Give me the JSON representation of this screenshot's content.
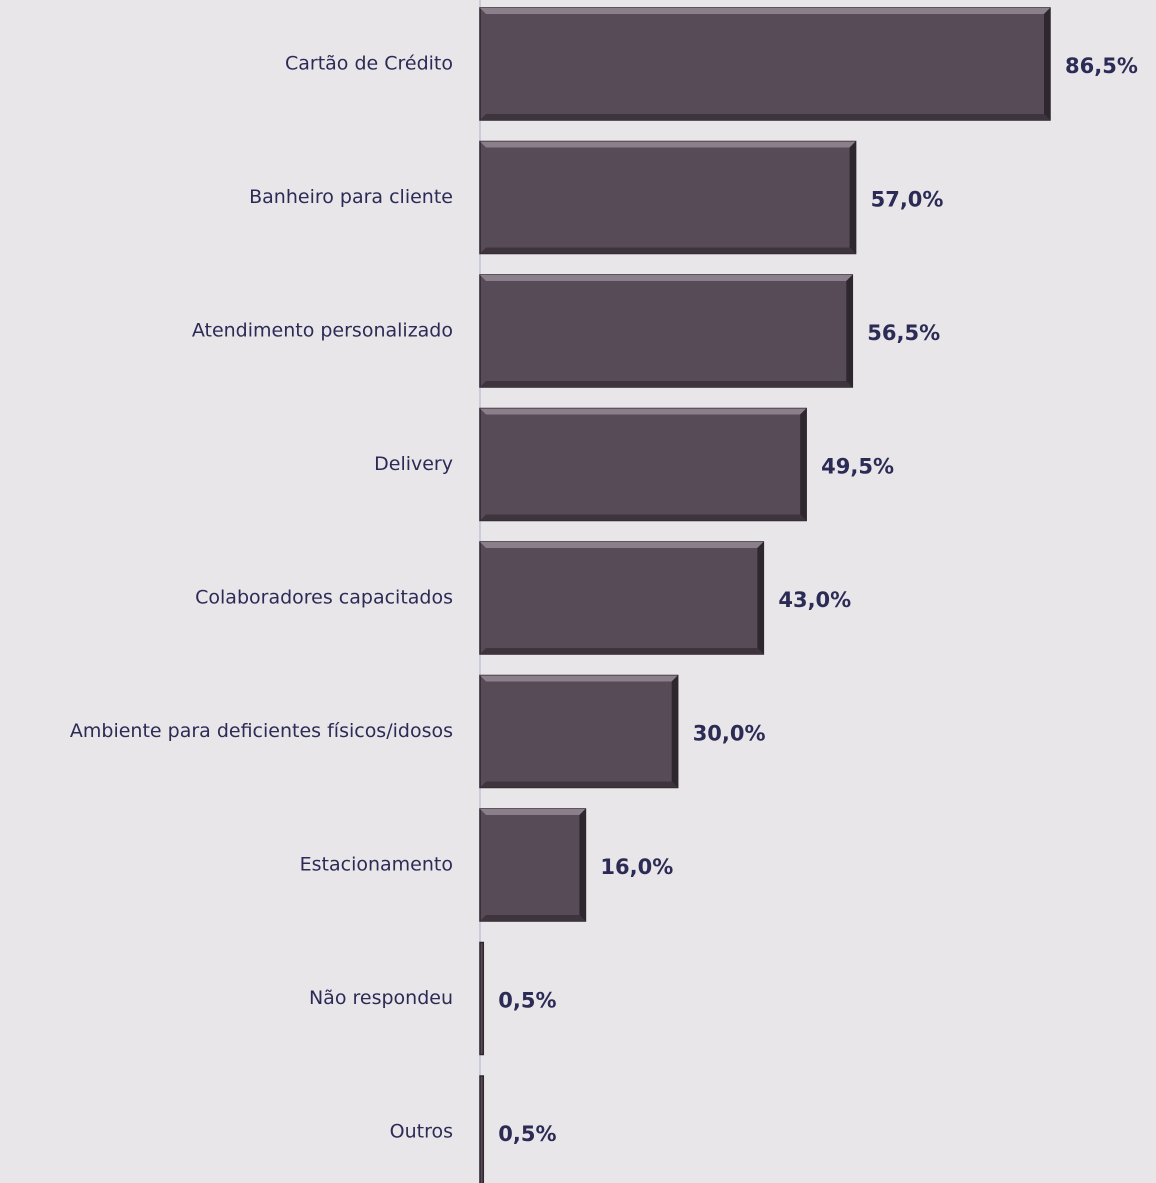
{
  "chart_data": {
    "type": "barh",
    "categories": [
      "Cartão de Crédito",
      "Banheiro para cliente",
      "Atendimento personalizado",
      "Delivery",
      "Colaboradores capacitados",
      "Ambiente para deficientes físicos/idosos",
      "Estacionamento",
      "Não respondeu",
      "Outros"
    ],
    "values": [
      86.5,
      57.0,
      56.5,
      49.5,
      43.0,
      30.0,
      16.0,
      0.5,
      0.5
    ],
    "value_labels": [
      "86,5%",
      "57,0%",
      "56,5%",
      "49,5%",
      "43,0%",
      "30,0%",
      "16,0%",
      "0,5%",
      "0,5%"
    ],
    "color": "#574b57"
  }
}
